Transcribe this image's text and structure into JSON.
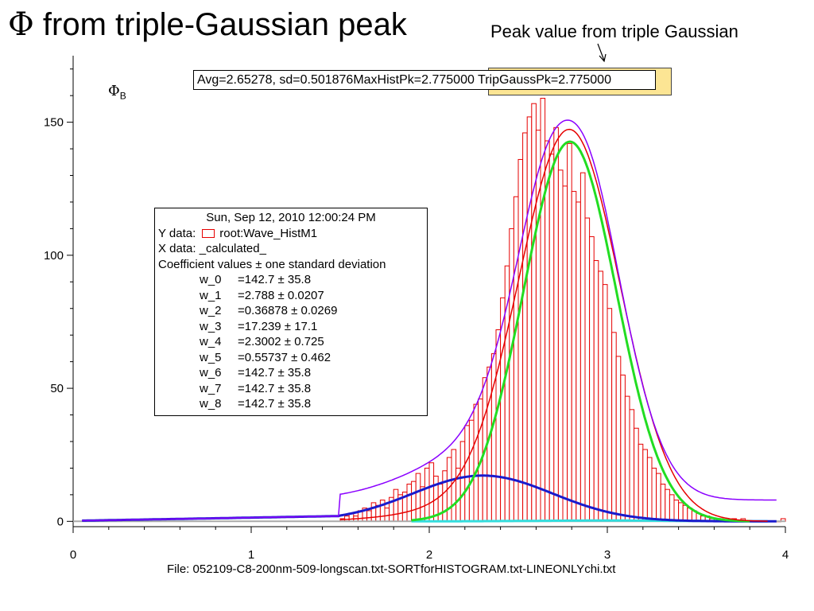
{
  "slide": {
    "title_symbol": "Φ",
    "title_text": " from triple-Gaussian peak",
    "callout": "Peak value from triple Gaussian"
  },
  "plot": {
    "stats_text": "Avg=2.65278, sd=0.501876MaxHistPk=2.775000 TripGaussPk=2.775000",
    "y_symbol": "Φ",
    "y_subscript": "B",
    "file_label": "File: 052109-C8-200nm-509-longscan.txt-SORTforHISTOGRAM.txt-LINEONLYchi.txt"
  },
  "legend": {
    "date": "Sun, Sep 12, 2010 12:00:24 PM",
    "ydata_label": "Y data:",
    "ydata_value": "root:Wave_HistM1",
    "xdata": "X data: _calculated_",
    "coef_header": "Coefficient values ± one standard deviation",
    "coefficients": [
      {
        "name": "w_0",
        "value": "=142.7 ± 35.8"
      },
      {
        "name": "w_1",
        "value": "=2.788 ± 0.0207"
      },
      {
        "name": "w_2",
        "value": "=0.36878 ± 0.0269"
      },
      {
        "name": "w_3",
        "value": "=17.239 ± 17.1"
      },
      {
        "name": "w_4",
        "value": "=2.3002 ± 0.725"
      },
      {
        "name": "w_5",
        "value": "=0.55737 ± 0.462"
      },
      {
        "name": "w_6",
        "value": "=142.7 ± 35.8"
      },
      {
        "name": "w_7",
        "value": "=142.7 ± 35.8"
      },
      {
        "name": "w_8",
        "value": "=142.7 ± 35.8"
      }
    ]
  },
  "chart_data": {
    "type": "bar",
    "title": "",
    "xlabel": "",
    "ylabel": "",
    "xlim": [
      0,
      4
    ],
    "ylim": [
      -2,
      175
    ],
    "xticks": [
      "0",
      "1",
      "2",
      "3",
      "4"
    ],
    "yticks": [
      "0",
      "50",
      "100",
      "150"
    ],
    "bin_width": 0.025,
    "histogram": {
      "start": 1.5,
      "counts": [
        1,
        2,
        3,
        2,
        4,
        5,
        4,
        7,
        6,
        8,
        5,
        9,
        12,
        10,
        11,
        14,
        15,
        18,
        13,
        20,
        22,
        17,
        14,
        19,
        24,
        27,
        20,
        30,
        36,
        38,
        44,
        46,
        54,
        58,
        63,
        72,
        84,
        96,
        110,
        122,
        136,
        146,
        152,
        157,
        147,
        159,
        143,
        138,
        148,
        132,
        126,
        142,
        124,
        120,
        131,
        114,
        107,
        98,
        94,
        89,
        80,
        71,
        62,
        55,
        47,
        42,
        35,
        29,
        27,
        24,
        20,
        18,
        14,
        12,
        10,
        8,
        7,
        6,
        5,
        4,
        3,
        2,
        2,
        1,
        1,
        1,
        0,
        0,
        1,
        0,
        1,
        0,
        0,
        0,
        0,
        0,
        0,
        0,
        0,
        1
      ]
    },
    "annotation": "Peak value from triple Gaussian",
    "fits": [
      {
        "color": "#8a00ff",
        "role": "total fit (purple)",
        "peak_x": 2.775,
        "peak_y": 151
      },
      {
        "color": "#e60000",
        "role": "red Gaussian",
        "peak_x": 2.79,
        "peak_y": 145
      },
      {
        "color": "#22dd22",
        "role": "green Gaussian",
        "peak_x": 2.79,
        "peak_y": 142.7,
        "width": 0.369
      },
      {
        "color": "#1a1acc",
        "role": "blue Gaussian",
        "peak_x": 2.3,
        "peak_y": 17.2,
        "width": 0.557
      },
      {
        "color": "#33dddd",
        "role": "cyan baseline",
        "peak_x": 3.0,
        "peak_y": 0.3
      }
    ]
  }
}
